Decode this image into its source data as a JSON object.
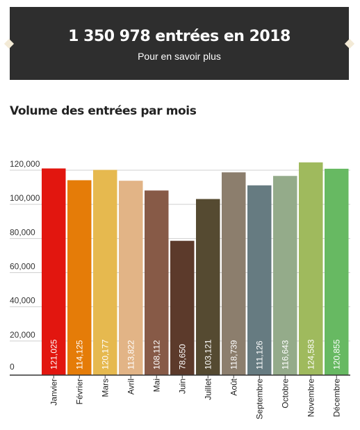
{
  "banner": {
    "title": "1 350 978 entrées en 2018",
    "link": "Pour en savoir plus",
    "background": "#2e2e2e",
    "notch_color": "#f3ead6"
  },
  "section": {
    "title": "Volume des entrées par mois"
  },
  "chart_data": {
    "type": "bar",
    "title": "",
    "xlabel": "",
    "ylabel": "",
    "ylim": [
      0,
      120000
    ],
    "yticks": [
      0,
      20000,
      40000,
      60000,
      80000,
      100000,
      120000
    ],
    "ytick_labels": [
      "0",
      "20,000",
      "40,000",
      "60,000",
      "80,000",
      "100,000",
      "120,000"
    ],
    "grid": true,
    "categories": [
      "Janvier",
      "Février",
      "Mars",
      "Avril",
      "Mai",
      "Juin",
      "Juillet",
      "Août",
      "Septembre",
      "Octobre",
      "Novembre",
      "Décembre"
    ],
    "values": [
      121025,
      114125,
      120177,
      113822,
      108112,
      78650,
      103121,
      118739,
      111126,
      116643,
      124583,
      120855
    ],
    "value_labels": [
      "121,025",
      "114,125",
      "120,177",
      "113,822",
      "108,112",
      "78,650",
      "103,121",
      "118,739",
      "111,126",
      "116,643",
      "124,583",
      "120,855"
    ],
    "colors": [
      "#e2160f",
      "#e57c08",
      "#e6b94f",
      "#e2b486",
      "#875a47",
      "#5c3a2b",
      "#554a31",
      "#8c7e6d",
      "#667b81",
      "#94ab8a",
      "#9fba5d",
      "#67b962"
    ]
  }
}
